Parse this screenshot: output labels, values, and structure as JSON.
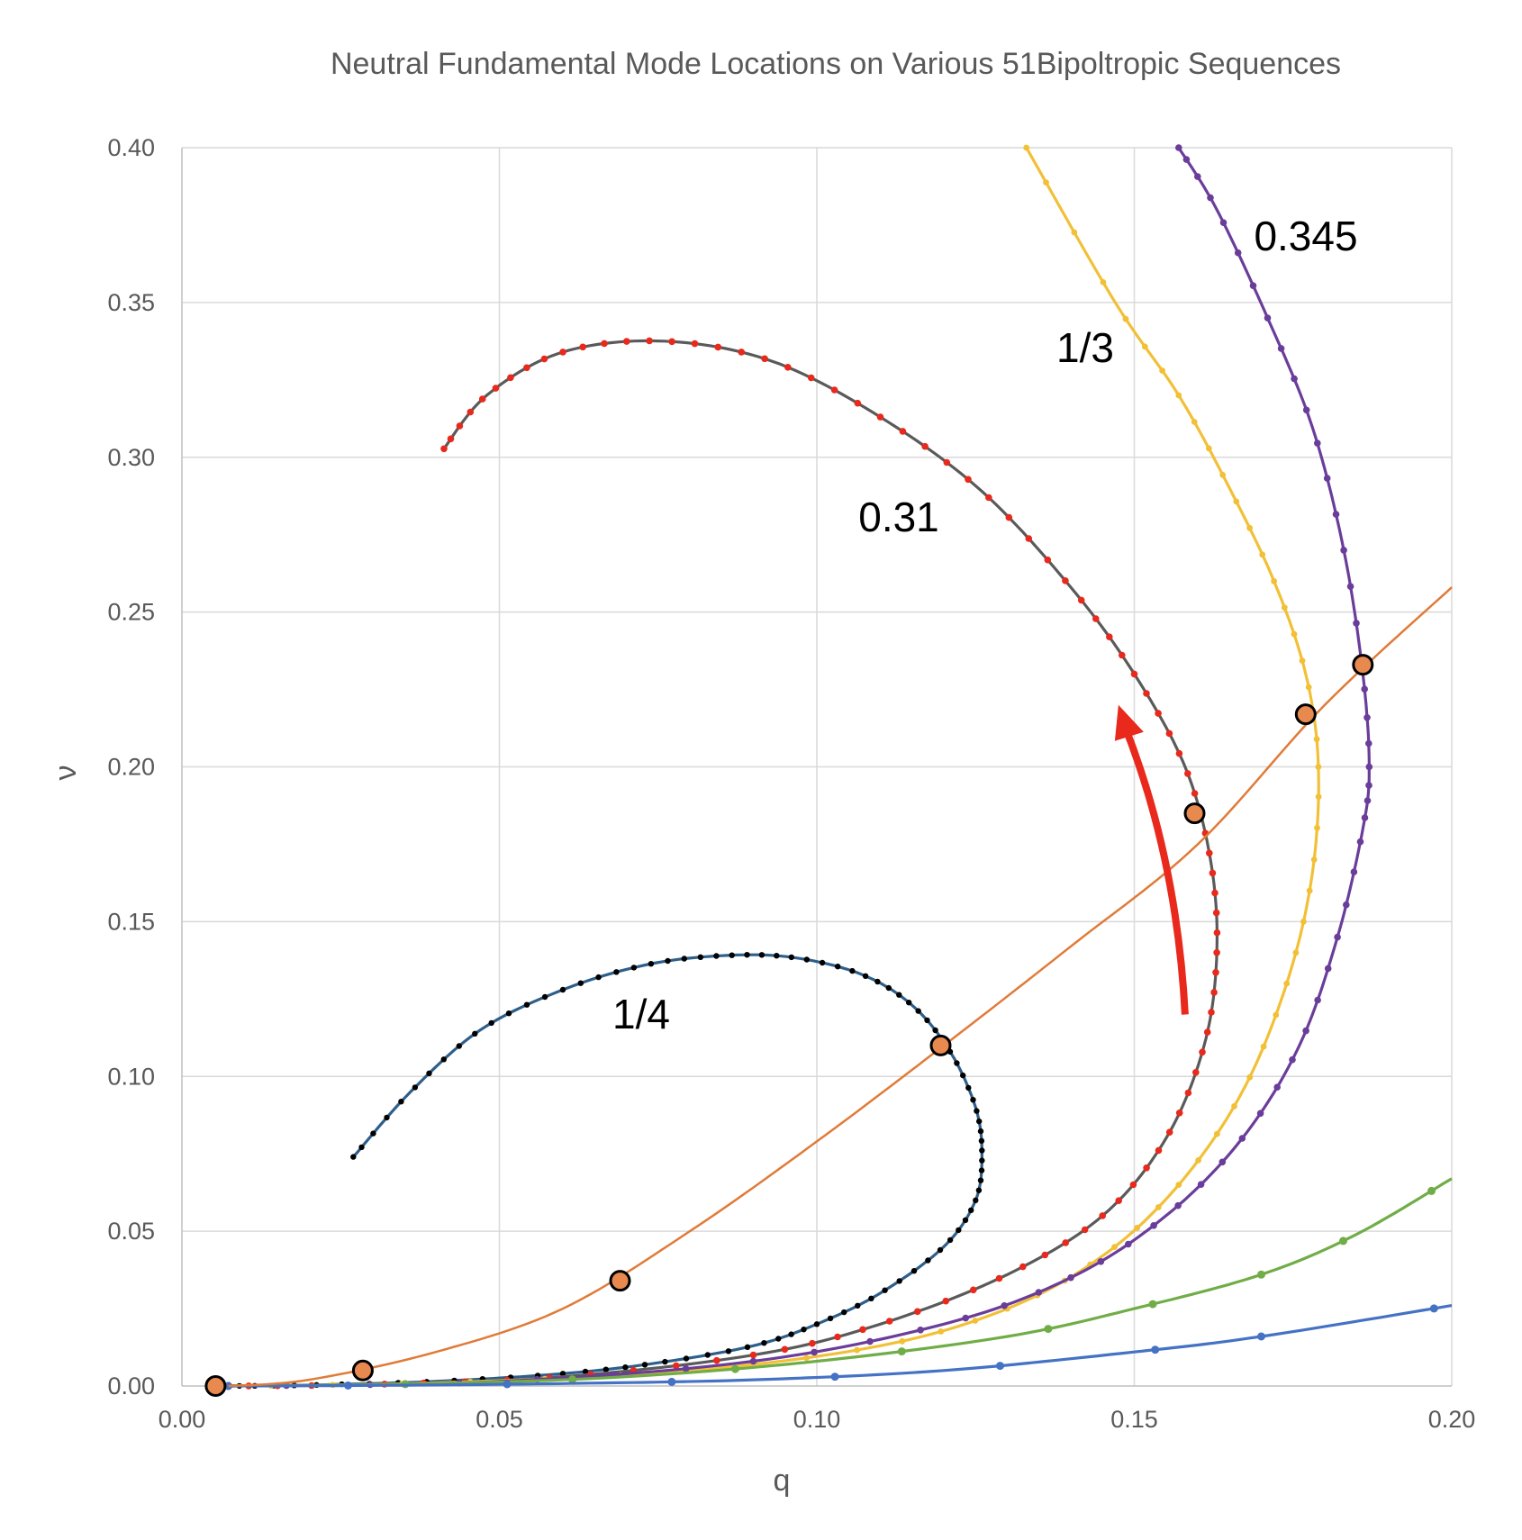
{
  "chart_data": {
    "type": "scatter",
    "title": "Neutral Fundamental Mode Locations on Various 51Bipoltropic Sequences",
    "xlabel": "q",
    "ylabel": "ν",
    "xlim": [
      0.0,
      0.2
    ],
    "ylim": [
      0.0,
      0.4
    ],
    "grid": true,
    "x_ticks": [
      "0.00",
      "0.05",
      "0.10",
      "0.15",
      "0.20"
    ],
    "y_ticks": [
      "0.00",
      "0.05",
      "0.10",
      "0.15",
      "0.20",
      "0.25",
      "0.30",
      "0.35",
      "0.40"
    ],
    "series": [
      {
        "name": "1/4",
        "label": "1/4",
        "color": "#000000",
        "line_color": "#2e5f8a",
        "x": [
          0.0073,
          0.02,
          0.04,
          0.06,
          0.075,
          0.09,
          0.1,
          0.11,
          0.12,
          0.125,
          0.126,
          0.125,
          0.121,
          0.115,
          0.107,
          0.096,
          0.085,
          0.073,
          0.06,
          0.047,
          0.036,
          0.027
        ],
        "y": [
          0.0,
          0.0003,
          0.0015,
          0.004,
          0.0075,
          0.013,
          0.02,
          0.03,
          0.045,
          0.06,
          0.075,
          0.09,
          0.108,
          0.123,
          0.133,
          0.1385,
          0.139,
          0.136,
          0.128,
          0.115,
          0.095,
          0.074
        ]
      },
      {
        "name": "0.31",
        "label": "0.31",
        "color": "#e8291c",
        "line_color": "#5a5a5a",
        "x": [
          0.0073,
          0.03,
          0.06,
          0.09,
          0.11,
          0.13,
          0.145,
          0.155,
          0.161,
          0.163,
          0.162,
          0.158,
          0.15,
          0.14,
          0.126,
          0.11,
          0.093,
          0.076,
          0.06,
          0.048,
          0.041
        ],
        "y": [
          0.0,
          0.0005,
          0.003,
          0.01,
          0.02,
          0.036,
          0.055,
          0.08,
          0.11,
          0.14,
          0.17,
          0.2,
          0.23,
          0.258,
          0.289,
          0.313,
          0.331,
          0.3375,
          0.334,
          0.32,
          0.302
        ]
      },
      {
        "name": "1/3",
        "label": "1/3",
        "color": "#f2c037",
        "x": [
          0.0073,
          0.04,
          0.08,
          0.11,
          0.13,
          0.145,
          0.157,
          0.167,
          0.174,
          0.178,
          0.179,
          0.177,
          0.172,
          0.165,
          0.157,
          0.147,
          0.133
        ],
        "y": [
          0.0,
          0.001,
          0.005,
          0.013,
          0.025,
          0.042,
          0.065,
          0.095,
          0.13,
          0.165,
          0.2,
          0.23,
          0.26,
          0.29,
          0.32,
          0.35,
          0.4
        ]
      },
      {
        "name": "0.345",
        "label": "0.345",
        "color": "#6a3d9a",
        "x": [
          0.0073,
          0.05,
          0.09,
          0.12,
          0.14,
          0.155,
          0.167,
          0.176,
          0.182,
          0.186,
          0.187,
          0.186,
          0.183,
          0.178,
          0.171,
          0.163,
          0.157
        ],
        "y": [
          0.0,
          0.0015,
          0.008,
          0.02,
          0.035,
          0.055,
          0.08,
          0.11,
          0.145,
          0.18,
          0.2,
          0.23,
          0.27,
          0.31,
          0.345,
          0.38,
          0.4
        ]
      },
      {
        "name": "green",
        "label": "",
        "color": "#70ad47",
        "x": [
          0.0073,
          0.04,
          0.07,
          0.1,
          0.13,
          0.15,
          0.17,
          0.185,
          0.2
        ],
        "y": [
          0.0,
          0.0008,
          0.003,
          0.008,
          0.016,
          0.025,
          0.036,
          0.049,
          0.067
        ]
      },
      {
        "name": "blue",
        "label": "",
        "color": "#4472c4",
        "x": [
          0.0073,
          0.03,
          0.06,
          0.09,
          0.12,
          0.15,
          0.17,
          0.2
        ],
        "y": [
          0.0,
          0.0002,
          0.0008,
          0.002,
          0.005,
          0.011,
          0.016,
          0.026
        ]
      },
      {
        "name": "orange-line",
        "label": "",
        "color": "#e07b39",
        "x": [
          0.0073,
          0.02,
          0.04,
          0.06,
          0.08,
          0.1,
          0.12,
          0.14,
          0.16,
          0.18,
          0.2
        ],
        "y": [
          0.0,
          0.002,
          0.011,
          0.025,
          0.05,
          0.079,
          0.11,
          0.142,
          0.175,
          0.22,
          0.258
        ]
      }
    ],
    "neutral_points": {
      "color": "#e8894f",
      "x": [
        0.0053,
        0.0285,
        0.069,
        0.1195,
        0.1595,
        0.177,
        0.186
      ],
      "y": [
        0.0,
        0.005,
        0.034,
        0.11,
        0.185,
        0.217,
        0.233
      ]
    },
    "arrow": {
      "color": "#e8291c",
      "from": [
        0.158,
        0.12
      ],
      "to": [
        0.1475,
        0.22
      ]
    }
  }
}
